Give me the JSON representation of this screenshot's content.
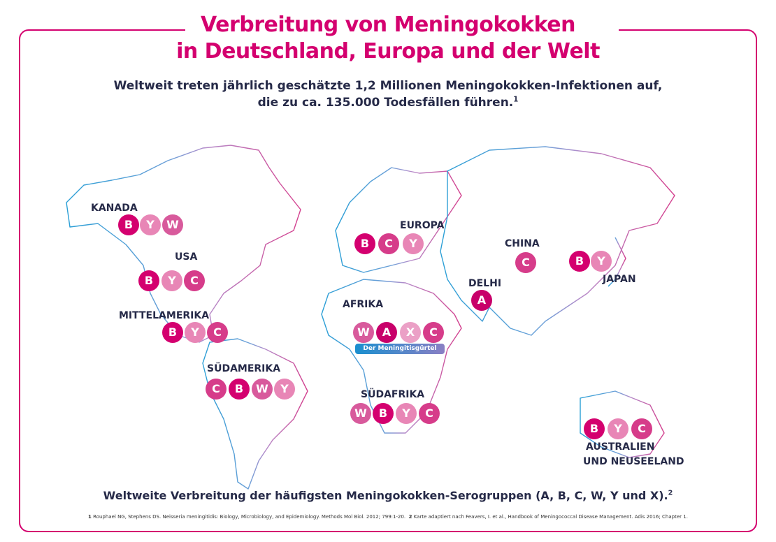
{
  "title": {
    "line1": "Verbreitung von Meningokokken",
    "line2": "in Deutschland, Europa und der Welt"
  },
  "subtitle": {
    "line1": "Weltweit treten jährlich geschätzte 1,2 Millionen Meningokokken-Infektionen auf,",
    "line2": "die zu ca. 135.000 Todesfällen führen.",
    "ref": "1"
  },
  "colors": {
    "brand": "#d4006f",
    "B": "#d4006f",
    "A": "#c8006a",
    "C": "#d63c8a",
    "W": "#d85a9c",
    "Y": "#e886b6",
    "X": "#eba0c6",
    "belt_from": "#1a8fcf",
    "belt_to": "#8a7fc4"
  },
  "regions": [
    {
      "name": "KANADA",
      "groups": [
        "B",
        "Y",
        "W"
      ]
    },
    {
      "name": "USA",
      "groups": [
        "B",
        "Y",
        "C"
      ]
    },
    {
      "name": "MITTELAMERIKA",
      "groups": [
        "B",
        "Y",
        "C"
      ]
    },
    {
      "name": "SÜDAMERIKA",
      "groups": [
        "C",
        "B",
        "W",
        "Y"
      ]
    },
    {
      "name": "EUROPA",
      "groups": [
        "B",
        "C",
        "Y"
      ]
    },
    {
      "name": "CHINA",
      "groups": [
        "C"
      ]
    },
    {
      "name": "JAPAN",
      "groups": [
        "B",
        "Y"
      ]
    },
    {
      "name": "DELHI",
      "groups": [
        "A"
      ]
    },
    {
      "name": "AFRIKA",
      "groups": [
        "W",
        "A",
        "X",
        "C"
      ]
    },
    {
      "name": "SÜDAFRIKA",
      "groups": [
        "W",
        "B",
        "Y",
        "C"
      ]
    },
    {
      "name": "AUSTRALIEN",
      "name2": "UND NEUSEELAND",
      "groups": [
        "B",
        "Y",
        "C"
      ]
    }
  ],
  "belt_label": "Der Meningitisgürtel",
  "caption": {
    "text": "Weltweite Verbreitung der häufigsten Meningokokken-Serogruppen (A, B, C, W, Y und X).",
    "ref": "2"
  },
  "footnote": {
    "n1": "1",
    "t1": "Rouphael NG, Stephens DS. Neisseria meningitidis: Biology, Microbiology, and Epidemiology. Methods Mol Biol. 2012; 799:1-20.",
    "n2": "2",
    "t2": "Karte adaptiert nach Feavers, I. et al., Handbook of Meningococcal Disease Management. Adis 2016; Chapter 1."
  }
}
